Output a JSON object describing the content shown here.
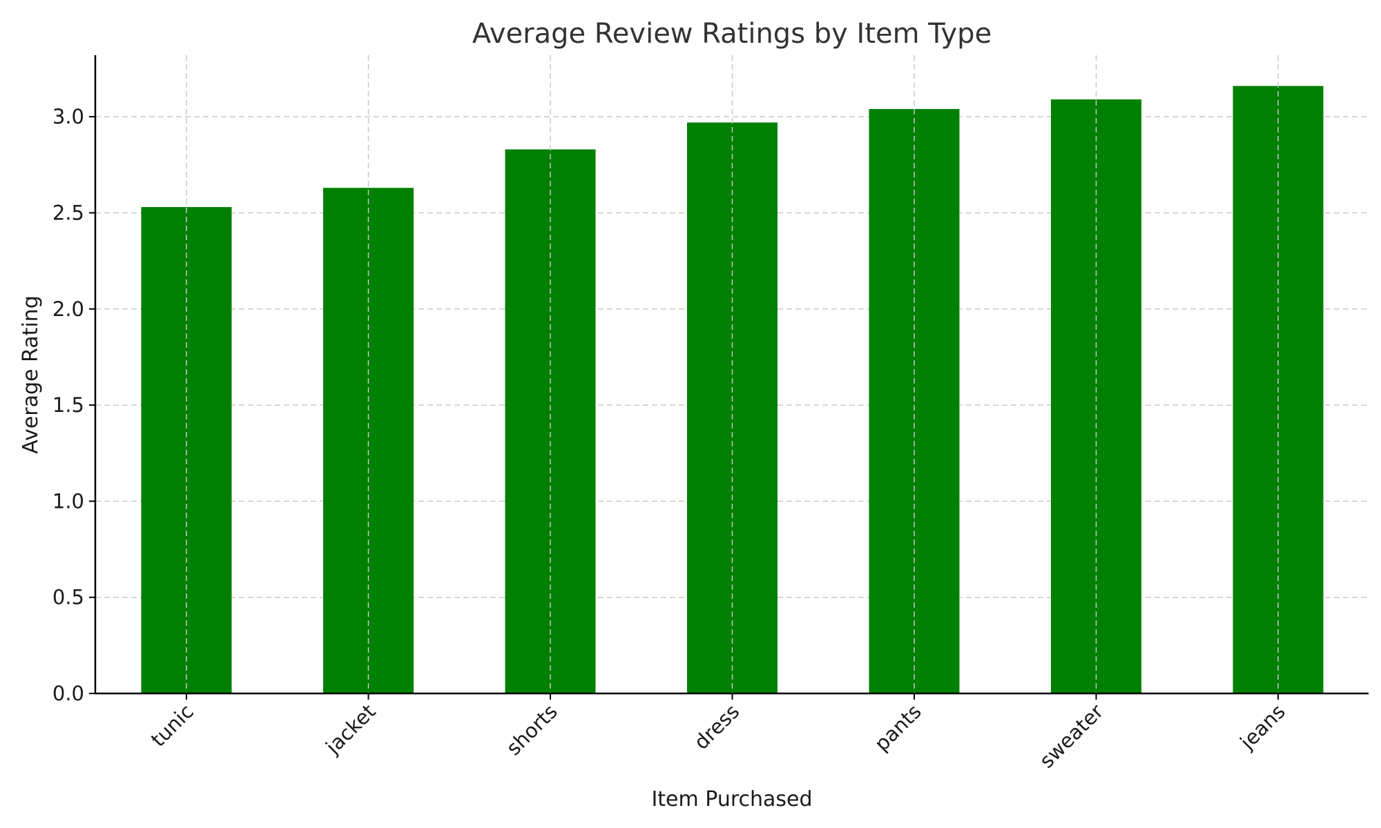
{
  "chart_data": {
    "type": "bar",
    "title": "Average Review Ratings by Item Type",
    "xlabel": "Item Purchased",
    "ylabel": "Average Rating",
    "categories": [
      "tunic",
      "jacket",
      "shorts",
      "dress",
      "pants",
      "sweater",
      "jeans"
    ],
    "values": [
      2.53,
      2.63,
      2.83,
      2.97,
      3.04,
      3.09,
      3.16
    ],
    "ylim": [
      0,
      3.32
    ],
    "yticks": [
      0.0,
      0.5,
      1.0,
      1.5,
      2.0,
      2.5,
      3.0
    ],
    "ytick_labels": [
      "0.0",
      "0.5",
      "1.0",
      "1.5",
      "2.0",
      "2.5",
      "3.0"
    ],
    "bar_color": "#008000",
    "grid": true,
    "xtick_rotation": "45 degrees"
  }
}
